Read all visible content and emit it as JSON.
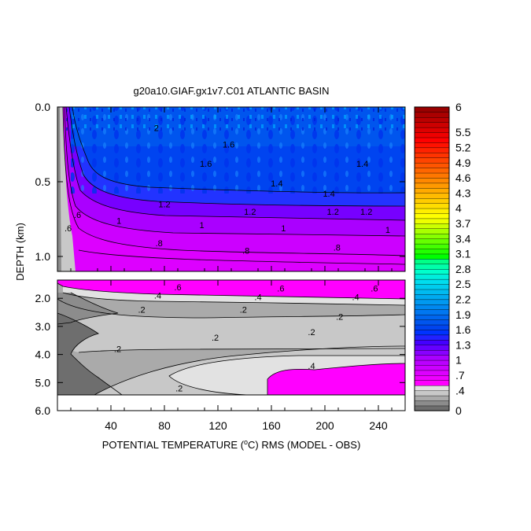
{
  "chart_data": {
    "type": "heatmap",
    "title": "g20a10.GIAF.gx1v7.C01 ATLANTIC BASIN",
    "xlabel": "POTENTIAL TEMPERATURE (",
    "xlabel_deg": "o",
    "xlabel_tail": "C) RMS (MODEL - OBS)",
    "ylabel": "DEPTH (km)",
    "x_ticks": [
      "40",
      "80",
      "120",
      "160",
      "200",
      "240"
    ],
    "x_tick_values": [
      40,
      80,
      120,
      160,
      200,
      240
    ],
    "xlim": [
      0,
      260
    ],
    "upper_panel": {
      "ylim": [
        0.0,
        1.1
      ],
      "y_ticks": [
        "0.0",
        "0.5",
        "1.0"
      ],
      "y_tick_values": [
        0.0,
        0.5,
        1.0
      ],
      "contour_labels": [
        {
          "text": ".6",
          "x": 15,
          "y": 0.72
        },
        {
          "text": ".6",
          "x": 8,
          "y": 0.81
        },
        {
          "text": "1.2",
          "x": 80,
          "y": 0.65
        },
        {
          "text": "1",
          "x": 46,
          "y": 0.76
        },
        {
          "text": "1",
          "x": 108,
          "y": 0.79
        },
        {
          "text": ".8",
          "x": 76,
          "y": 0.91
        },
        {
          "text": ".8",
          "x": 141,
          "y": 0.96
        },
        {
          "text": ".8",
          "x": 209,
          "y": 0.94
        },
        {
          "text": "1.2",
          "x": 144,
          "y": 0.7
        },
        {
          "text": "1",
          "x": 169,
          "y": 0.81
        },
        {
          "text": "1.2",
          "x": 206,
          "y": 0.7
        },
        {
          "text": "1",
          "x": 247,
          "y": 0.82
        },
        {
          "text": "1.4",
          "x": 164,
          "y": 0.51
        },
        {
          "text": "1.4",
          "x": 203,
          "y": 0.58
        },
        {
          "text": "1.4",
          "x": 228,
          "y": 0.38
        },
        {
          "text": "1.6",
          "x": 111,
          "y": 0.38
        },
        {
          "text": "1.6",
          "x": 128,
          "y": 0.25
        },
        {
          "text": "2",
          "x": 74,
          "y": 0.14
        },
        {
          "text": "1.2",
          "x": 231,
          "y": 0.7
        }
      ]
    },
    "lower_panel": {
      "ylim": [
        1.35,
        6.0
      ],
      "y_ticks": [
        "2.0",
        "3.0",
        "4.0",
        "5.0",
        "6.0"
      ],
      "y_tick_values": [
        2.0,
        3.0,
        4.0,
        5.0,
        6.0
      ],
      "contour_labels": [
        {
          "text": ".6",
          "x": 90,
          "y": 1.6
        },
        {
          "text": ".6",
          "x": 167,
          "y": 1.65
        },
        {
          "text": ".6",
          "x": 237,
          "y": 1.65
        },
        {
          "text": ".4",
          "x": 75,
          "y": 1.9
        },
        {
          "text": ".4",
          "x": 150,
          "y": 1.95
        },
        {
          "text": ".4",
          "x": 223,
          "y": 1.95
        },
        {
          "text": ".2",
          "x": 63,
          "y": 2.4
        },
        {
          "text": ".2",
          "x": 139,
          "y": 2.4
        },
        {
          "text": ".2",
          "x": 211,
          "y": 2.65
        },
        {
          "text": ".2",
          "x": 45,
          "y": 3.8
        },
        {
          "text": ".2",
          "x": 118,
          "y": 3.4
        },
        {
          "text": ".2",
          "x": 190,
          "y": 3.2
        },
        {
          "text": ".4",
          "x": 190,
          "y": 4.4
        },
        {
          "text": ".2",
          "x": 91,
          "y": 5.2
        }
      ]
    },
    "colorbar": {
      "labels": [
        "6",
        "5.5",
        "5.2",
        "4.9",
        "4.6",
        "4.3",
        "4",
        "3.7",
        "3.4",
        "3.1",
        "2.8",
        "2.5",
        "2.2",
        "1.9",
        "1.6",
        "1.3",
        "1",
        ".7",
        ".4",
        "0"
      ],
      "label_values": [
        6,
        5.5,
        5.2,
        4.9,
        4.6,
        4.3,
        4,
        3.7,
        3.4,
        3.1,
        2.8,
        2.5,
        2.2,
        1.9,
        1.6,
        1.3,
        1,
        0.7,
        0.4,
        0
      ],
      "colors": [
        "#6e6e6e",
        "#8c8c8c",
        "#aaaaaa",
        "#c8c8c8",
        "#e2e2e2",
        "#ff00ff",
        "#ee00ff",
        "#dd00ff",
        "#cc00ff",
        "#bb00ff",
        "#aa00ff",
        "#8800ff",
        "#6600ff",
        "#4400ff",
        "#2222ff",
        "#0033ff",
        "#0044ee",
        "#0055ee",
        "#0066ee",
        "#0077f0",
        "#0088f0",
        "#0099f0",
        "#00aaf0",
        "#00bbf0",
        "#00ccee",
        "#00ddee",
        "#00eedd",
        "#00ffcc",
        "#00ffaa",
        "#00ff88",
        "#00ff00",
        "#22ff00",
        "#44ff00",
        "#66ff00",
        "#88ff00",
        "#aaff00",
        "#ccff00",
        "#eeff00",
        "#ffff00",
        "#ffee00",
        "#ffdd00",
        "#ffcc00",
        "#ffbb00",
        "#ffaa00",
        "#ff9900",
        "#ff8800",
        "#ff7700",
        "#ff6600",
        "#ff5500",
        "#ff4400",
        "#ff3300",
        "#ff2200",
        "#ff1100",
        "#ff0000",
        "#ee0000",
        "#dd0000",
        "#cc0000",
        "#bb0000",
        "#aa0000",
        "#990000"
      ]
    }
  }
}
